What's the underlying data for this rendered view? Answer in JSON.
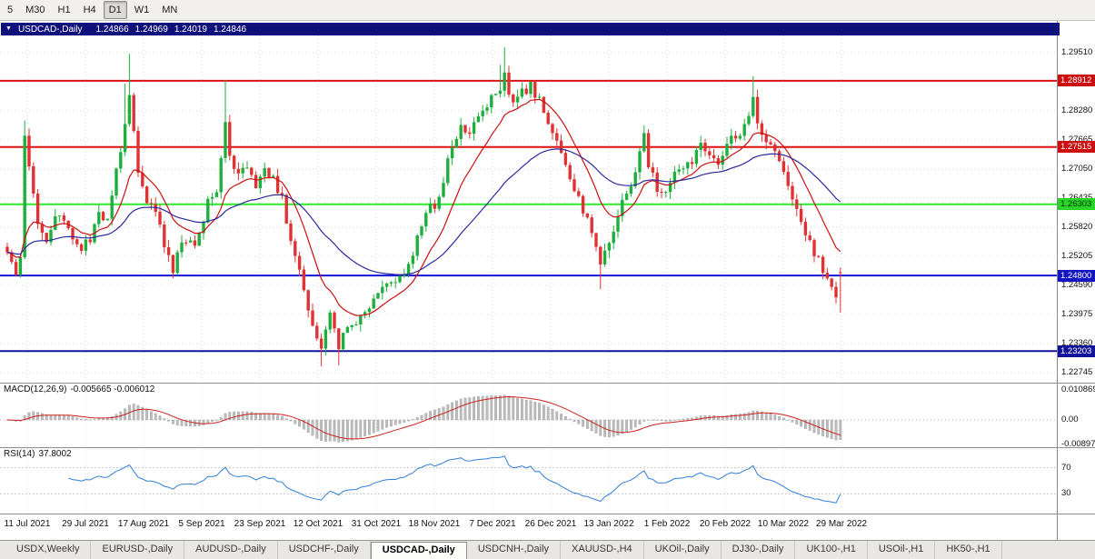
{
  "toolbar": {
    "timeframes": [
      {
        "label": "5",
        "active": false
      },
      {
        "label": "M30",
        "active": false
      },
      {
        "label": "H1",
        "active": false
      },
      {
        "label": "H4",
        "active": false
      },
      {
        "label": "D1",
        "active": true
      },
      {
        "label": "W1",
        "active": false
      },
      {
        "label": "MN",
        "active": false
      }
    ]
  },
  "title_bar": {
    "collapse_icon": "▼",
    "symbol": "USDCAD-,Daily",
    "open": "1.24866",
    "high": "1.24969",
    "low": "1.24019",
    "close": "1.24846"
  },
  "chart_data": {
    "type": "candlestick",
    "symbol": "USDCAD",
    "timeframe": "Daily",
    "colors": {
      "up": "#1fae3d",
      "down": "#e03232",
      "ma_fast": "#cc1111",
      "ma_slow": "#2a2aa0",
      "grid": "#d4d4d4"
    },
    "price_axis_labels": [
      "1.29510",
      "1.28280",
      "1.27665",
      "1.27050",
      "1.26435",
      "1.25820",
      "1.25205",
      "1.24590",
      "1.23975",
      "1.23360",
      "1.22745"
    ],
    "levels": [
      {
        "text": "1.28912",
        "price": 1.28912,
        "line_color": "#dd1111",
        "badge_color": "#cc0e0e",
        "text_color": "#ffffff"
      },
      {
        "text": "1.27515",
        "price": 1.27515,
        "line_color": "#dd1111",
        "badge_color": "#cc0e0e",
        "text_color": "#ffffff"
      },
      {
        "text": "1.26303",
        "price": 1.26303,
        "line_color": "#2ee82e",
        "badge_color": "#28d428",
        "text_color": "#003300"
      },
      {
        "text": "1.24800",
        "price": 1.248,
        "line_color": "#1515d8",
        "badge_color": "#1414c4",
        "text_color": "#ffffff"
      },
      {
        "text": "1.23203",
        "price": 1.23203,
        "line_color": "#12129a",
        "badge_color": "#12129a",
        "text_color": "#ffffff"
      }
    ],
    "date_axis": [
      "11 Jul 2021",
      "29 Jul 2021",
      "17 Aug 2021",
      "5 Sep 2021",
      "23 Sep 2021",
      "12 Oct 2021",
      "31 Oct 2021",
      "18 Nov 2021",
      "7 Dec 2021",
      "26 Dec 2021",
      "13 Jan 2022",
      "1 Feb 2022",
      "20 Feb 2022",
      "10 Mar 2022",
      "29 Mar 2022"
    ],
    "series_model": {
      "count": 192,
      "ma_fast_period": 12,
      "ma_slow_period": 40,
      "anchors": [
        [
          0,
          1.2535
        ],
        [
          2,
          1.248
        ],
        [
          3,
          1.252
        ],
        [
          4,
          1.278
        ],
        [
          5,
          1.27
        ],
        [
          7,
          1.259
        ],
        [
          9,
          1.2555
        ],
        [
          11,
          1.2605
        ],
        [
          13,
          1.259
        ],
        [
          15,
          1.255
        ],
        [
          17,
          1.253
        ],
        [
          19,
          1.256
        ],
        [
          21,
          1.262
        ],
        [
          23,
          1.259
        ],
        [
          25,
          1.27
        ],
        [
          27,
          1.28
        ],
        [
          28,
          1.287
        ],
        [
          29,
          1.279
        ],
        [
          30,
          1.269
        ],
        [
          32,
          1.264
        ],
        [
          34,
          1.2625
        ],
        [
          36,
          1.255
        ],
        [
          38,
          1.2495
        ],
        [
          40,
          1.256
        ],
        [
          42,
          1.2545
        ],
        [
          44,
          1.256
        ],
        [
          46,
          1.264
        ],
        [
          48,
          1.266
        ],
        [
          50,
          1.281
        ],
        [
          51,
          1.273
        ],
        [
          53,
          1.269
        ],
        [
          55,
          1.271
        ],
        [
          57,
          1.266
        ],
        [
          59,
          1.27
        ],
        [
          61,
          1.268
        ],
        [
          63,
          1.264
        ],
        [
          65,
          1.256
        ],
        [
          67,
          1.25
        ],
        [
          69,
          1.24
        ],
        [
          71,
          1.235
        ],
        [
          72,
          1.233
        ],
        [
          74,
          1.2405
        ],
        [
          76,
          1.2335
        ],
        [
          78,
          1.237
        ],
        [
          80,
          1.2385
        ],
        [
          82,
          1.24
        ],
        [
          84,
          1.244
        ],
        [
          86,
          1.2455
        ],
        [
          88,
          1.2465
        ],
        [
          90,
          1.248
        ],
        [
          92,
          1.2505
        ],
        [
          94,
          1.256
        ],
        [
          96,
          1.2615
        ],
        [
          98,
          1.263
        ],
        [
          100,
          1.268
        ],
        [
          102,
          1.276
        ],
        [
          104,
          1.279
        ],
        [
          106,
          1.277
        ],
        [
          108,
          1.282
        ],
        [
          110,
          1.2845
        ],
        [
          112,
          1.2855
        ],
        [
          114,
          1.2905
        ],
        [
          115,
          1.287
        ],
        [
          116,
          1.284
        ],
        [
          118,
          1.2865
        ],
        [
          120,
          1.288
        ],
        [
          122,
          1.285
        ],
        [
          124,
          1.28
        ],
        [
          126,
          1.276
        ],
        [
          128,
          1.272
        ],
        [
          130,
          1.2665
        ],
        [
          132,
          1.262
        ],
        [
          134,
          1.2565
        ],
        [
          136,
          1.2495
        ],
        [
          138,
          1.2555
        ],
        [
          140,
          1.261
        ],
        [
          142,
          1.2655
        ],
        [
          144,
          1.27
        ],
        [
          146,
          1.2775
        ],
        [
          147,
          1.271
        ],
        [
          149,
          1.2665
        ],
        [
          151,
          1.2655
        ],
        [
          153,
          1.269
        ],
        [
          155,
          1.271
        ],
        [
          157,
          1.272
        ],
        [
          159,
          1.275
        ],
        [
          161,
          1.2735
        ],
        [
          163,
          1.272
        ],
        [
          165,
          1.276
        ],
        [
          167,
          1.278
        ],
        [
          169,
          1.279
        ],
        [
          171,
          1.2855
        ],
        [
          172,
          1.28
        ],
        [
          174,
          1.277
        ],
        [
          176,
          1.2745
        ],
        [
          178,
          1.2705
        ],
        [
          180,
          1.265
        ],
        [
          182,
          1.259
        ],
        [
          184,
          1.2545
        ],
        [
          186,
          1.251
        ],
        [
          188,
          1.247
        ],
        [
          190,
          1.244
        ],
        [
          191,
          1.24846
        ]
      ],
      "spikes": [
        {
          "i": 4,
          "high": 1.2807
        },
        {
          "i": 27,
          "high": 1.2885
        },
        {
          "i": 28,
          "high": 1.2948
        },
        {
          "i": 50,
          "high": 1.2893
        },
        {
          "i": 113,
          "high": 1.2925
        },
        {
          "i": 114,
          "high": 1.2962
        },
        {
          "i": 72,
          "low": 1.2288
        },
        {
          "i": 76,
          "low": 1.229
        },
        {
          "i": 136,
          "low": 1.2451
        },
        {
          "i": 146,
          "high": 1.2797
        },
        {
          "i": 171,
          "high": 1.2901
        },
        {
          "i": 190,
          "low": 1.2428
        }
      ],
      "last_candle": {
        "open": 1.24866,
        "high": 1.24969,
        "low": 1.24019,
        "close": 1.24846
      }
    }
  },
  "macd": {
    "label": "MACD(12,26,9)",
    "values": "-0.005665 -0.006012",
    "axis_labels": [
      "0.010869",
      "0.00",
      "-0.008974"
    ]
  },
  "rsi": {
    "label": "RSI(14)",
    "value": "37.8002",
    "axis_labels": [
      "70",
      "30"
    ],
    "levels": [
      70,
      30
    ]
  },
  "tabs": [
    "USDX,Weekly",
    "EURUSD-,Daily",
    "AUDUSD-,Daily",
    "USDCHF-,Daily",
    "USDCAD-,Daily",
    "USDCNH-,Daily",
    "XAUUSD-,H4",
    "UKOil-,Daily",
    "DJ30-,Daily",
    "UK100-,H1",
    "USOil-,H1",
    "HK50-,H1"
  ],
  "active_tab": "USDCAD-,Daily"
}
